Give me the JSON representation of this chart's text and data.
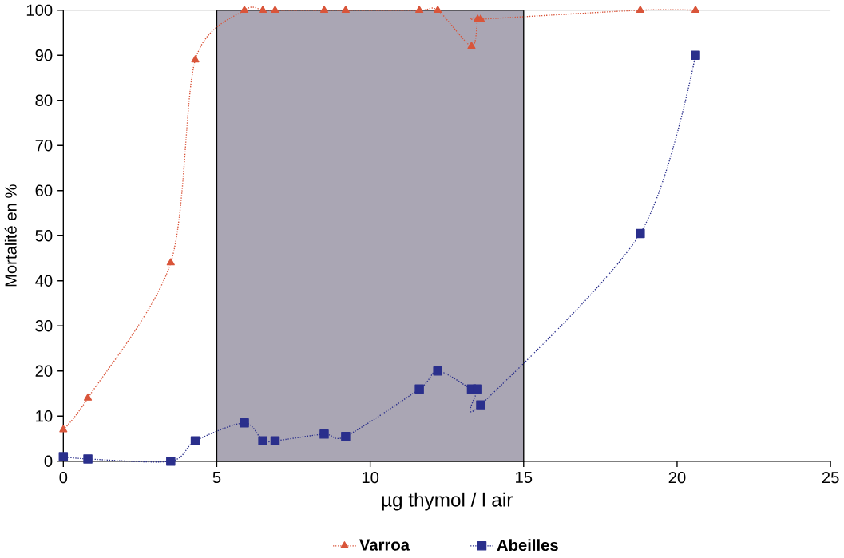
{
  "chart_data": {
    "type": "line",
    "xlabel": "µg thymol / l air",
    "ylabel": "Mortalité en %",
    "xlim": [
      0,
      25
    ],
    "ylim": [
      0,
      100
    ],
    "xticks": [
      0,
      5,
      10,
      15,
      20,
      25
    ],
    "yticks": [
      0,
      10,
      20,
      30,
      40,
      50,
      60,
      70,
      80,
      90,
      100
    ],
    "series": [
      {
        "name": "Varroa",
        "color": "#d9553a",
        "marker": "triangle",
        "x": [
          0,
          0.8,
          3.5,
          4.3,
          5.9,
          6.5,
          6.9,
          8.5,
          9.2,
          11.6,
          12.2,
          13.3,
          13.5,
          13.6,
          18.8,
          20.6
        ],
        "values": [
          7,
          14,
          44,
          89,
          100,
          100,
          100,
          100,
          100,
          100,
          100,
          92,
          98,
          98,
          100,
          100
        ]
      },
      {
        "name": "Abeilles",
        "color": "#2a2f8c",
        "marker": "square",
        "x": [
          0,
          0.8,
          3.5,
          4.3,
          5.9,
          6.5,
          6.9,
          8.5,
          9.2,
          11.6,
          12.2,
          13.3,
          13.5,
          13.6,
          18.8,
          20.6
        ],
        "values": [
          1,
          0.5,
          0,
          4.5,
          8.5,
          4.5,
          4.5,
          6,
          5.5,
          16,
          20,
          16,
          16,
          12.5,
          50.5,
          90
        ]
      }
    ],
    "line_style": "dotted",
    "bands": [
      {
        "axis": "x",
        "from": 5,
        "to": 15,
        "color": "#aaa6b4"
      }
    ],
    "grid": false,
    "legend": "bottom"
  }
}
